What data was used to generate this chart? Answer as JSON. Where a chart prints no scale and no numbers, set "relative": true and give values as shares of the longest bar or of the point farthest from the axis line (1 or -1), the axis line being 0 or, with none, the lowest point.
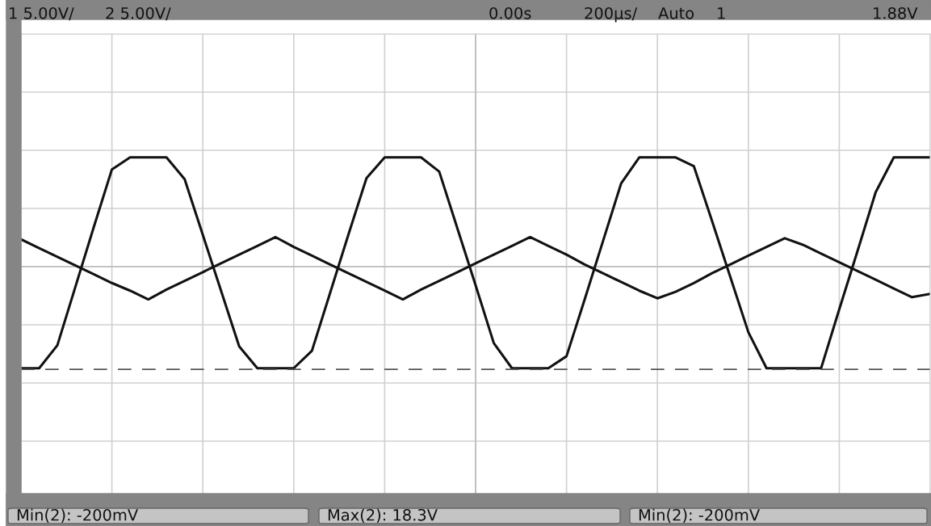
{
  "chart_data": {
    "type": "line",
    "relative": true,
    "grid": true,
    "tick_labels": false,
    "marker": "none",
    "line_style": "solid",
    "categories": [
      null,
      null,
      null,
      null,
      null,
      null,
      null,
      null,
      null,
      null,
      null,
      null,
      null,
      null,
      null,
      null,
      null,
      null,
      null,
      null,
      null,
      null,
      null,
      null,
      null,
      null,
      null,
      null,
      null,
      null,
      null,
      null,
      null,
      null,
      null,
      null,
      null,
      null,
      null,
      null,
      null,
      null,
      null,
      null,
      null,
      null,
      null,
      null,
      null,
      null,
      null
    ],
    "series": [
      {
        "color": "#111111",
        "values": [
          0.25,
          0.17,
          0.09,
          0.01,
          -0.07,
          -0.15,
          -0.22,
          -0.3,
          -0.21,
          -0.13,
          -0.05,
          0.03,
          0.11,
          0.19,
          0.27,
          0.18,
          0.1,
          0.02,
          -0.06,
          -0.14,
          -0.22,
          -0.3,
          -0.21,
          -0.13,
          -0.05,
          0.03,
          0.11,
          0.19,
          0.27,
          0.19,
          0.11,
          0.02,
          -0.06,
          -0.14,
          -0.22,
          -0.29,
          -0.23,
          -0.15,
          -0.06,
          0.02,
          0.1,
          0.18,
          0.26,
          0.2,
          0.12,
          0.04,
          -0.04,
          -0.12,
          -0.2,
          -0.28,
          -0.25
        ]
      },
      {
        "color": "#111111",
        "values": [
          -0.93,
          -0.93,
          -0.72,
          -0.18,
          0.36,
          0.89,
          1.0,
          1.0,
          1.0,
          0.8,
          0.29,
          -0.22,
          -0.73,
          -0.93,
          -0.93,
          -0.93,
          -0.77,
          -0.24,
          0.29,
          0.81,
          1.0,
          1.0,
          1.0,
          0.87,
          0.35,
          -0.17,
          -0.7,
          -0.93,
          -0.93,
          -0.93,
          -0.82,
          -0.3,
          0.23,
          0.76,
          1.0,
          1.0,
          1.0,
          0.92,
          0.42,
          -0.09,
          -0.6,
          -0.93,
          -0.93,
          -0.93,
          -0.93,
          -0.39,
          0.14,
          0.68,
          1.0,
          1.0,
          1.0
        ]
      }
    ],
    "ref_lines": [
      {
        "axis": "y",
        "value": -0.94,
        "color": "#555555",
        "line_style": "dashed"
      }
    ],
    "annotations": [
      "1 5.00V/",
      "2 5.00V/",
      "0.00s",
      "200µs/",
      "Auto",
      "1",
      "1.88V",
      "Min(2): -200mV",
      "Max(2): 18.3V",
      "Min(2): -200mV"
    ]
  }
}
